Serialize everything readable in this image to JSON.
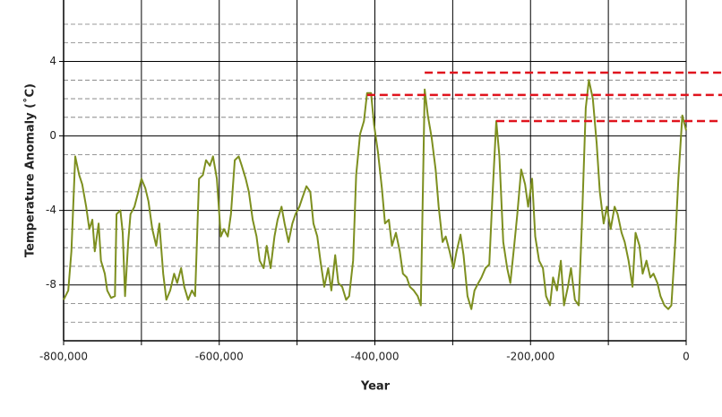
{
  "chart_data": {
    "type": "line",
    "xlabel": "Year",
    "ylabel": "Temperature Anomaly (˚C)",
    "xlim": [
      -800000,
      0
    ],
    "ylim": [
      -11,
      7.3
    ],
    "xticks": [
      {
        "value": -800000,
        "label": "-800,000"
      },
      {
        "value": -600000,
        "label": "-600,000"
      },
      {
        "value": -400000,
        "label": "-400,000"
      },
      {
        "value": -200000,
        "label": "-200,000"
      },
      0
    ],
    "x_minor_ticks": [
      -700000,
      -500000,
      -300000,
      -100000
    ],
    "yticks": [
      4,
      0,
      -4,
      -8
    ],
    "y_minor_gridlines": [
      6,
      5,
      3,
      2,
      1,
      -1,
      -2,
      -3,
      -5,
      -6,
      -7,
      -9,
      -10
    ],
    "grid": true,
    "x": [
      -800000,
      -794000,
      -790000,
      -785000,
      -780000,
      -776000,
      -771000,
      -767000,
      -763000,
      -760000,
      -755000,
      -752000,
      -747000,
      -744000,
      -739000,
      -734000,
      -732000,
      -727000,
      -724000,
      -721000,
      -717000,
      -714000,
      -709000,
      -704000,
      -700000,
      -695000,
      -691000,
      -686000,
      -681000,
      -677000,
      -672000,
      -668000,
      -663000,
      -658000,
      -654000,
      -649000,
      -645000,
      -640000,
      -635000,
      -631000,
      -626000,
      -621000,
      -617000,
      -612000,
      -608000,
      -603000,
      -598000,
      -594000,
      -589000,
      -585000,
      -580000,
      -575000,
      -571000,
      -566000,
      -562000,
      -557000,
      -552000,
      -548000,
      -543000,
      -539000,
      -534000,
      -529000,
      -525000,
      -520000,
      -516000,
      -511000,
      -506000,
      -502000,
      -497000,
      -493000,
      -488000,
      -483000,
      -479000,
      -474000,
      -470000,
      -465000,
      -460000,
      -456000,
      -451000,
      -447000,
      -442000,
      -437000,
      -433000,
      -428000,
      -424000,
      -419000,
      -414000,
      -410000,
      -405000,
      -401000,
      -396000,
      -391000,
      -387000,
      -382000,
      -378000,
      -373000,
      -368000,
      -364000,
      -359000,
      -355000,
      -350000,
      -345000,
      -341000,
      -336000,
      -332000,
      -327000,
      -322000,
      -318000,
      -313000,
      -309000,
      -304000,
      -299000,
      -295000,
      -290000,
      -286000,
      -281000,
      -276000,
      -272000,
      -267000,
      -263000,
      -258000,
      -253000,
      -249000,
      -244000,
      -240000,
      -235000,
      -230000,
      -226000,
      -221000,
      -217000,
      -212000,
      -207000,
      -203000,
      -198000,
      -194000,
      -189000,
      -184000,
      -180000,
      -175000,
      -171000,
      -166000,
      -161000,
      -157000,
      -152000,
      -148000,
      -143000,
      -138000,
      -134000,
      -129000,
      -125000,
      -120000,
      -115000,
      -111000,
      -106000,
      -102000,
      -97000,
      -92000,
      -88000,
      -83000,
      -79000,
      -74000,
      -69000,
      -65000,
      -60000,
      -56000,
      -51000,
      -46000,
      -42000,
      -37000,
      -33000,
      -28000,
      -23000,
      -19000,
      -14000,
      -10000,
      -5000,
      0
    ],
    "series": [
      {
        "color": "#7d8f1f",
        "values": [
          -8.8,
          -8.3,
          -6.2,
          -1.1,
          -2.1,
          -2.6,
          -3.8,
          -5.0,
          -4.5,
          -6.2,
          -4.7,
          -6.7,
          -7.4,
          -8.3,
          -8.7,
          -8.6,
          -4.2,
          -4.0,
          -5.2,
          -8.6,
          -5.7,
          -4.2,
          -3.8,
          -3.0,
          -2.3,
          -2.8,
          -3.5,
          -5.0,
          -5.9,
          -4.7,
          -7.4,
          -8.8,
          -8.3,
          -7.4,
          -7.9,
          -7.1,
          -8.1,
          -8.8,
          -8.3,
          -8.6,
          -2.3,
          -2.1,
          -1.3,
          -1.6,
          -1.1,
          -2.3,
          -5.4,
          -5.0,
          -5.4,
          -4.2,
          -1.3,
          -1.1,
          -1.6,
          -2.3,
          -3.0,
          -4.5,
          -5.4,
          -6.7,
          -7.1,
          -5.9,
          -7.1,
          -5.4,
          -4.5,
          -3.8,
          -4.7,
          -5.7,
          -4.7,
          -4.2,
          -3.8,
          -3.3,
          -2.7,
          -3.0,
          -4.7,
          -5.4,
          -6.7,
          -8.1,
          -7.1,
          -8.3,
          -6.4,
          -7.9,
          -8.1,
          -8.8,
          -8.6,
          -6.7,
          -2.1,
          0.1,
          0.8,
          2.3,
          2.3,
          0.6,
          -0.9,
          -2.8,
          -4.7,
          -4.5,
          -5.9,
          -5.2,
          -6.2,
          -7.4,
          -7.6,
          -8.1,
          -8.3,
          -8.6,
          -9.1,
          2.5,
          1.1,
          -0.1,
          -1.8,
          -3.8,
          -5.7,
          -5.4,
          -6.2,
          -7.1,
          -6.2,
          -5.3,
          -6.4,
          -8.6,
          -9.3,
          -8.3,
          -7.9,
          -7.6,
          -7.1,
          -6.9,
          -3.3,
          0.8,
          -1.1,
          -5.7,
          -7.1,
          -7.9,
          -5.9,
          -4.2,
          -1.8,
          -2.6,
          -3.8,
          -2.3,
          -5.4,
          -6.7,
          -7.1,
          -8.6,
          -9.1,
          -7.6,
          -8.3,
          -6.7,
          -9.1,
          -8.1,
          -7.1,
          -8.8,
          -9.1,
          -4.7,
          1.5,
          3.0,
          2.0,
          -0.4,
          -3.0,
          -4.7,
          -3.8,
          -5.0,
          -3.8,
          -4.2,
          -5.2,
          -5.7,
          -6.7,
          -8.1,
          -5.2,
          -5.9,
          -7.4,
          -6.7,
          -7.6,
          -7.4,
          -7.9,
          -8.6,
          -9.1,
          -9.3,
          -9.1,
          -5.7,
          -2.3,
          1.1,
          0.3
        ]
      }
    ],
    "reference_lines": [
      {
        "y": 2.2,
        "x_start": -410000
      },
      {
        "y": 3.4,
        "x_start": -336000
      },
      {
        "y": 0.8,
        "x_start": -244000
      }
    ],
    "reference_color": "#e0141e"
  }
}
